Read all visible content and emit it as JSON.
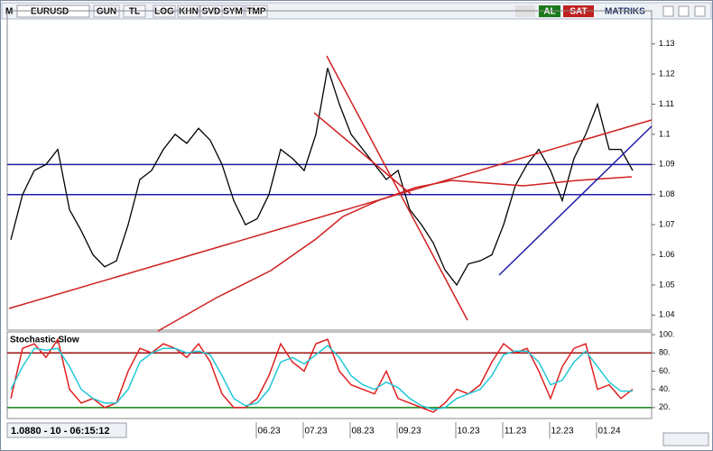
{
  "toolbar": {
    "logo": "M",
    "symbol": "EURUSD",
    "buttons": [
      "GUN",
      "TL",
      "LOG",
      "KHN",
      "SVD",
      "SYM",
      "TMP"
    ],
    "buy": "AL",
    "sell": "SAT",
    "brand": "MATRIKS"
  },
  "status": "1.0880 - 10 - 06:15:12",
  "chart_data": [
    {
      "type": "line",
      "color": "#000000",
      "categories": [
        null,
        null,
        null,
        null,
        null,
        null,
        null,
        null,
        null,
        null,
        null,
        null,
        null,
        null,
        null,
        null,
        null,
        null,
        null,
        null,
        null,
        null,
        "06.23",
        null,
        null,
        null,
        "07.23",
        null,
        null,
        null,
        "08.23",
        null,
        null,
        null,
        "09.23",
        null,
        null,
        null,
        null,
        "10.23",
        null,
        null,
        null,
        "11.23",
        null,
        null,
        null,
        "12.23",
        null,
        null,
        null,
        "01.24",
        null,
        null
      ],
      "values": [
        1.065,
        1.08,
        1.088,
        1.09,
        1.095,
        1.075,
        1.068,
        1.06,
        1.056,
        1.058,
        1.07,
        1.085,
        1.088,
        1.095,
        1.1,
        1.097,
        1.102,
        1.098,
        1.09,
        1.078,
        1.07,
        1.072,
        1.08,
        1.095,
        1.092,
        1.088,
        1.1,
        1.122,
        1.11,
        1.1,
        1.095,
        1.09,
        1.085,
        1.088,
        1.075,
        1.07,
        1.064,
        1.055,
        1.05,
        1.057,
        1.058,
        1.06,
        1.07,
        1.083,
        1.09,
        1.095,
        1.088,
        1.078,
        1.092,
        1.1,
        1.11,
        1.095,
        1.095,
        1.088
      ],
      "ylim": [
        1.035,
        1.141
      ],
      "yticks": [
        1.04,
        1.05,
        1.06,
        1.07,
        1.08,
        1.09,
        1.1,
        1.11,
        1.12,
        1.13
      ],
      "levels": [
        1.09,
        1.08
      ],
      "level_color": "#1f1fa8"
    },
    {
      "type": "line",
      "title": "Stochastic,Slow",
      "series": [
        {
          "color": "#e02020",
          "values": [
            30,
            85,
            90,
            75,
            95,
            40,
            25,
            30,
            20,
            25,
            60,
            85,
            80,
            90,
            85,
            75,
            90,
            70,
            35,
            20,
            20,
            30,
            55,
            90,
            70,
            60,
            90,
            95,
            60,
            45,
            40,
            35,
            60,
            30,
            25,
            20,
            15,
            25,
            40,
            35,
            45,
            70,
            90,
            80,
            85,
            60,
            30,
            65,
            85,
            90,
            40,
            45,
            30,
            40
          ]
        },
        {
          "color": "#20c8d8",
          "values": [
            40,
            65,
            85,
            83,
            85,
            65,
            40,
            30,
            25,
            25,
            40,
            70,
            80,
            85,
            85,
            80,
            82,
            78,
            55,
            30,
            22,
            25,
            40,
            70,
            75,
            68,
            78,
            88,
            75,
            55,
            45,
            40,
            48,
            42,
            30,
            22,
            18,
            20,
            30,
            35,
            40,
            55,
            78,
            82,
            82,
            70,
            45,
            50,
            70,
            82,
            65,
            48,
            38,
            38
          ]
        }
      ],
      "ylim": [
        8,
        103
      ],
      "yticks": [
        {
          "value": 20,
          "label": "20."
        },
        {
          "value": 40,
          "label": "40."
        },
        {
          "value": 60,
          "label": "60."
        },
        {
          "value": 80,
          "label": "80."
        },
        {
          "value": 100,
          "label": "100."
        }
      ],
      "levels": [
        80,
        20
      ],
      "level_colors": [
        "#a01010",
        "#108010"
      ]
    }
  ]
}
